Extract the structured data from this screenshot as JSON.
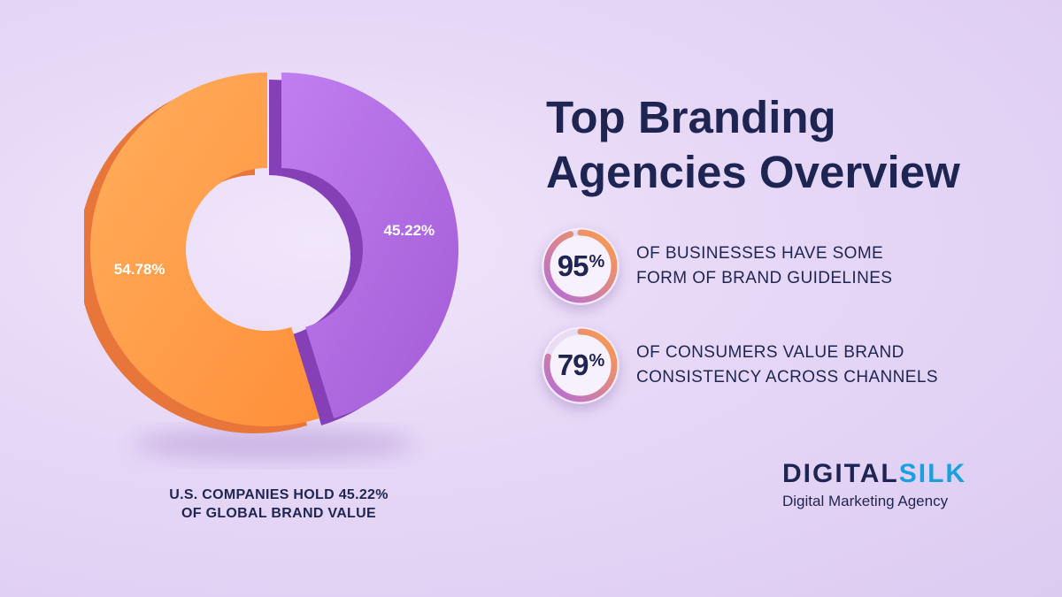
{
  "header": {
    "title_line1": "Top Branding",
    "title_line2": "Agencies Overview"
  },
  "chart_data": {
    "type": "pie",
    "slices": [
      {
        "label": "54.78%",
        "value": 54.78,
        "color": "#ff9d45"
      },
      {
        "label": "45.22%",
        "value": 45.22,
        "color": "#b06ce0"
      }
    ],
    "caption_line1": "U.S. COMPANIES HOLD 45.22%",
    "caption_line2": "OF GLOBAL BRAND VALUE"
  },
  "stats": [
    {
      "number": "95",
      "unit": "%",
      "value": 95,
      "text_line1": "OF BUSINESSES HAVE SOME",
      "text_line2": "FORM OF BRAND GUIDELINES"
    },
    {
      "number": "79",
      "unit": "%",
      "value": 79,
      "text_line1": "OF CONSUMERS VALUE BRAND",
      "text_line2": "CONSISTENCY ACROSS CHANNELS"
    }
  ],
  "brand": {
    "name_part1": "DIGITAL",
    "name_part2": "SILK",
    "tagline": "Digital Marketing Agency"
  },
  "colors": {
    "navy": "#1f2552",
    "orange": "#ff9d45",
    "purple": "#b06ce0",
    "brand_blue": "#1ba0dc"
  }
}
